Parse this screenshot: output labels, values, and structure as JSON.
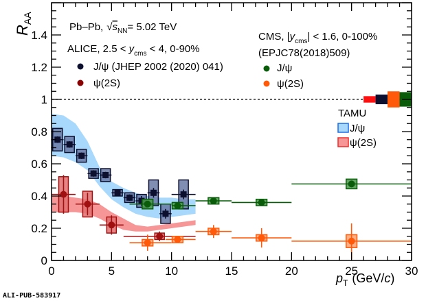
{
  "watermark": "ALI-PUB-583917",
  "chart_data": {
    "type": "scatter",
    "xlabel": "p_T (GeV/c)",
    "xlabel_main": "p",
    "xlabel_sub": "T",
    "xlabel_unit": "(GeV/",
    "xlabel_unit_c": "c",
    "xlabel_unit_end": ")",
    "ylabel_main": "R",
    "ylabel_sub": "AA",
    "xlim": [
      0,
      30
    ],
    "ylim": [
      0,
      1.6
    ],
    "xticks": [
      0,
      5,
      10,
      15,
      20,
      25,
      30
    ],
    "yticks": [
      0,
      0.2,
      0.4,
      0.6,
      0.8,
      1,
      1.2,
      1.4
    ],
    "ytick_labels": [
      "0",
      "0.2",
      "0.4",
      "0.6",
      "0.8",
      "1",
      "1.2",
      "1.4"
    ],
    "reference_line": 1,
    "annotations": {
      "system": "Pb–Pb,",
      "energy_sqrt": "s",
      "energy_sub": "NN",
      "energy_value": "= 5.02 TeV",
      "alice_header_a": "ALICE, 2.5 < ",
      "alice_header_y": "y",
      "alice_header_sub": "cms",
      "alice_header_b": " < 4, 0-90%",
      "cms_header_a": "CMS, |",
      "cms_header_y": "y",
      "cms_header_sub": "cms",
      "cms_header_b": "| < 1.6, 0-100%",
      "cms_ref": "(EPJC78(2018)509)",
      "tamu_title": "TAMU"
    },
    "legend": [
      {
        "label": "J/ψ (JHEP 2002 (2020) 041)",
        "color": "#0d0f2e",
        "group": "ALICE"
      },
      {
        "label": "ψ(2S)",
        "color": "#8b0000",
        "group": "ALICE"
      },
      {
        "label": "J/ψ",
        "color": "#0a5c0a",
        "group": "CMS"
      },
      {
        "label": "ψ(2S)",
        "color": "#ff5a0a",
        "group": "CMS"
      },
      {
        "label": "J/ψ",
        "color": "#a8d8fb",
        "edge": "#1a6ee8",
        "group": "TAMU"
      },
      {
        "label": "ψ(2S)",
        "color": "#f69697",
        "edge": "#ee2b2b",
        "group": "TAMU"
      }
    ],
    "series": [
      {
        "name": "ALICE J/psi",
        "color": "#0d0f2e",
        "boxfill": "#6a7aa6",
        "marker": "square",
        "points": [
          {
            "x": 0.5,
            "xlo": 0,
            "xhi": 1,
            "y": 0.75,
            "stat": 0.02,
            "syst": 0.07
          },
          {
            "x": 1.5,
            "xlo": 1,
            "xhi": 2,
            "y": 0.72,
            "stat": 0.02,
            "syst": 0.05
          },
          {
            "x": 2.5,
            "xlo": 2,
            "xhi": 3,
            "y": 0.65,
            "stat": 0.02,
            "syst": 0.04
          },
          {
            "x": 3.5,
            "xlo": 3,
            "xhi": 4,
            "y": 0.54,
            "stat": 0.02,
            "syst": 0.03
          },
          {
            "x": 4.5,
            "xlo": 4,
            "xhi": 5,
            "y": 0.53,
            "stat": 0.02,
            "syst": 0.04
          },
          {
            "x": 5.5,
            "xlo": 5,
            "xhi": 6,
            "y": 0.42,
            "stat": 0.02,
            "syst": 0.02
          },
          {
            "x": 6.5,
            "xlo": 6,
            "xhi": 7,
            "y": 0.39,
            "stat": 0.02,
            "syst": 0.03
          },
          {
            "x": 7.5,
            "xlo": 7,
            "xhi": 8,
            "y": 0.37,
            "stat": 0.03,
            "syst": 0.04
          },
          {
            "x": 8.5,
            "xlo": 8,
            "xhi": 9,
            "y": 0.42,
            "stat": 0.03,
            "syst": 0.08
          },
          {
            "x": 9.5,
            "xlo": 9,
            "xhi": 10,
            "y": 0.29,
            "stat": 0.03,
            "syst": 0.06
          },
          {
            "x": 11,
            "xlo": 10,
            "xhi": 12,
            "y": 0.41,
            "stat": 0.03,
            "syst": 0.09
          }
        ]
      },
      {
        "name": "ALICE psi(2S)",
        "color": "#a01010",
        "boxfill": "#e07070",
        "marker": "circle",
        "points": [
          {
            "x": 1,
            "xlo": 0,
            "xhi": 2,
            "y": 0.41,
            "stat": 0.12,
            "syst": 0.11
          },
          {
            "x": 3,
            "xlo": 2,
            "xhi": 4,
            "y": 0.35,
            "stat": 0.07,
            "syst": 0.08
          },
          {
            "x": 5,
            "xlo": 4,
            "xhi": 6,
            "y": 0.22,
            "stat": 0.06,
            "syst": 0.05
          },
          {
            "x": 9,
            "xlo": 6,
            "xhi": 12,
            "y": 0.15,
            "stat": 0.03,
            "syst": 0.02
          }
        ]
      },
      {
        "name": "CMS J/psi",
        "color": "#0a5c0a",
        "boxfill": "#4a9a4a",
        "marker": "circle",
        "points": [
          {
            "x": 8,
            "xlo": 6.5,
            "xhi": 10,
            "y": 0.35,
            "stat": 0.01,
            "syst": 0.03
          },
          {
            "x": 10.5,
            "xlo": 10,
            "xhi": 12,
            "y": 0.34,
            "stat": 0.01,
            "syst": 0.02
          },
          {
            "x": 13.5,
            "xlo": 12,
            "xhi": 15,
            "y": 0.37,
            "stat": 0.01,
            "syst": 0.02
          },
          {
            "x": 17.5,
            "xlo": 15,
            "xhi": 20,
            "y": 0.36,
            "stat": 0.01,
            "syst": 0.02
          },
          {
            "x": 25,
            "xlo": 20,
            "xhi": 30,
            "y": 0.475,
            "stat": 0.01,
            "syst": 0.03
          }
        ]
      },
      {
        "name": "CMS psi(2S)",
        "color": "#ff5a0a",
        "boxfill": "#ffa070",
        "marker": "circle",
        "points": [
          {
            "x": 8,
            "xlo": 6.5,
            "xhi": 10,
            "y": 0.11,
            "stat": 0.05,
            "syst": 0.02
          },
          {
            "x": 10.5,
            "xlo": 9.5,
            "xhi": 12,
            "y": 0.13,
            "stat": 0.02,
            "syst": 0.02
          },
          {
            "x": 13.5,
            "xlo": 12,
            "xhi": 15,
            "y": 0.18,
            "stat": 0.04,
            "syst": 0.02
          },
          {
            "x": 17.5,
            "xlo": 15,
            "xhi": 20,
            "y": 0.14,
            "stat": 0.06,
            "syst": 0.02
          },
          {
            "x": 25,
            "xlo": 20,
            "xhi": 30,
            "y": 0.12,
            "stat": 0.11,
            "syst": 0.04
          }
        ]
      }
    ],
    "bands": [
      {
        "name": "TAMU J/psi",
        "color": "#a8d8fb",
        "x": [
          0,
          1,
          2,
          3,
          4,
          5,
          6,
          7,
          8,
          9,
          10,
          11,
          12
        ],
        "high": [
          0.91,
          0.9,
          0.85,
          0.74,
          0.58,
          0.49,
          0.45,
          0.42,
          0.4,
          0.39,
          0.39,
          0.38,
          0.38
        ],
        "low": [
          0.65,
          0.64,
          0.61,
          0.56,
          0.46,
          0.38,
          0.33,
          0.29,
          0.27,
          0.26,
          0.27,
          0.28,
          0.29
        ]
      },
      {
        "name": "TAMU psi(2S)",
        "color": "#f69697",
        "x": [
          0,
          1,
          2,
          3,
          4,
          5,
          6,
          7,
          8,
          9,
          10,
          11,
          12
        ],
        "high": [
          0.4,
          0.4,
          0.39,
          0.38,
          0.35,
          0.3,
          0.26,
          0.22,
          0.21,
          0.22,
          0.23,
          0.24,
          0.25
        ],
        "low": [
          0.3,
          0.3,
          0.3,
          0.29,
          0.26,
          0.22,
          0.19,
          0.18,
          0.18,
          0.19,
          0.2,
          0.21,
          0.22
        ]
      }
    ],
    "global_uncertainties": [
      {
        "name": "ALICE psi(2S)",
        "color": "#ff1010",
        "xlo": 26,
        "xhi": 27,
        "half": 0.02
      },
      {
        "name": "ALICE J/psi",
        "color": "#0d0f2e",
        "xlo": 27,
        "xhi": 28,
        "half": 0.03
      },
      {
        "name": "CMS psi(2S)",
        "color": "#ff5a0a",
        "xlo": 28,
        "xhi": 29,
        "half": 0.05
      },
      {
        "name": "CMS J/psi",
        "color": "#0a5c0a",
        "xlo": 29,
        "xhi": 30,
        "half": 0.045
      }
    ]
  }
}
